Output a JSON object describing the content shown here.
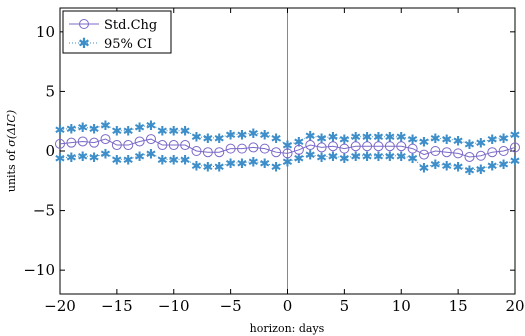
{
  "chart_data": {
    "type": "line",
    "xlabel": "horizon: days",
    "ylabel_prefix": "units of ",
    "ylabel_math": "σ(ΔIC)",
    "xlim": [
      -20,
      20
    ],
    "ylim": [
      -12,
      12
    ],
    "xticks": [
      -20,
      -15,
      -10,
      -5,
      0,
      5,
      10,
      15,
      20
    ],
    "yticks": [
      -10,
      -5,
      0,
      5,
      10
    ],
    "xtick_labels": [
      "−20",
      "−15",
      "−10",
      "−5",
      "0",
      "5",
      "10",
      "15",
      "20"
    ],
    "ytick_labels": [
      "−10",
      "−5",
      "0",
      "5",
      "10"
    ],
    "grid": false,
    "legend_position": "top-left",
    "vertical_reference_line_x": 0,
    "x": [
      -20,
      -19,
      -18,
      -17,
      -16,
      -15,
      -14,
      -13,
      -12,
      -11,
      -10,
      -9,
      -8,
      -7,
      -6,
      -5,
      -4,
      -3,
      -2,
      -1,
      0,
      1,
      2,
      3,
      4,
      5,
      6,
      7,
      8,
      9,
      10,
      11,
      12,
      13,
      14,
      15,
      16,
      17,
      18,
      19,
      20
    ],
    "series": [
      {
        "name": "Std.Chg",
        "style": "line-circle",
        "color": "#7b68c8",
        "values": [
          0.6,
          0.7,
          0.8,
          0.7,
          1.0,
          0.5,
          0.5,
          0.8,
          1.0,
          0.5,
          0.5,
          0.5,
          0.0,
          -0.1,
          -0.1,
          0.2,
          0.2,
          0.3,
          0.2,
          -0.1,
          -0.2,
          0.1,
          0.5,
          0.3,
          0.4,
          0.2,
          0.4,
          0.4,
          0.4,
          0.4,
          0.4,
          0.2,
          -0.3,
          0.0,
          -0.1,
          -0.2,
          -0.5,
          -0.4,
          -0.1,
          0.0,
          0.3
        ]
      },
      {
        "name": "95% CI",
        "style": "dotted-star",
        "color": "#3d8ec9",
        "upper": [
          1.8,
          1.9,
          2.0,
          1.9,
          2.2,
          1.7,
          1.7,
          2.0,
          2.2,
          1.7,
          1.7,
          1.7,
          1.2,
          1.1,
          1.1,
          1.4,
          1.4,
          1.5,
          1.4,
          1.1,
          0.5,
          0.8,
          1.3,
          1.1,
          1.2,
          1.0,
          1.2,
          1.2,
          1.2,
          1.2,
          1.2,
          1.0,
          0.8,
          1.1,
          1.0,
          0.9,
          0.6,
          0.7,
          1.0,
          1.1,
          1.4
        ],
        "lower": [
          -0.6,
          -0.5,
          -0.4,
          -0.5,
          -0.2,
          -0.7,
          -0.7,
          -0.4,
          -0.2,
          -0.7,
          -0.7,
          -0.7,
          -1.2,
          -1.3,
          -1.3,
          -1.0,
          -1.0,
          -0.9,
          -1.0,
          -1.3,
          -0.9,
          -0.6,
          -0.3,
          -0.5,
          -0.4,
          -0.6,
          -0.4,
          -0.4,
          -0.4,
          -0.4,
          -0.4,
          -0.6,
          -1.4,
          -1.1,
          -1.2,
          -1.3,
          -1.6,
          -1.5,
          -1.2,
          -1.1,
          -0.8
        ]
      }
    ]
  }
}
